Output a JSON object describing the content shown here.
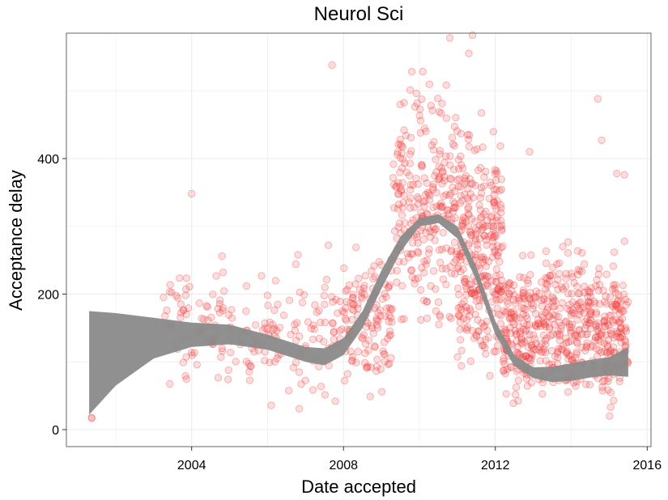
{
  "chart_data": {
    "type": "scatter",
    "title": "Neurol Sci",
    "xlabel": "Date accepted",
    "ylabel": "Acceptance delay",
    "x_ticks": [
      2004,
      2008,
      2012,
      2016
    ],
    "y_ticks": [
      0,
      200,
      400
    ],
    "xlim": [
      2000.7,
      2016.1
    ],
    "ylim": [
      -25,
      585
    ],
    "grid": true,
    "colors": {
      "points": "#f03c3c",
      "band": "#8a8a8a",
      "grid": "#ebebeb",
      "frame": "#7f7f7f"
    },
    "point_clusters": [
      {
        "x": [
          2001.3,
          2001.4
        ],
        "y": [
          10,
          22
        ],
        "n": 2
      },
      {
        "x": [
          2003.2,
          2005.5
        ],
        "y": [
          40,
          260
        ],
        "n": 90
      },
      {
        "x": [
          2005.5,
          2008.0
        ],
        "y": [
          10,
          270
        ],
        "n": 110
      },
      {
        "x": [
          2008.0,
          2009.3
        ],
        "y": [
          30,
          300
        ],
        "n": 130
      },
      {
        "x": [
          2009.3,
          2011.0
        ],
        "y": [
          100,
          560
        ],
        "n": 260
      },
      {
        "x": [
          2011.0,
          2012.2
        ],
        "y": [
          0,
          500
        ],
        "n": 300
      },
      {
        "x": [
          2012.2,
          2015.5
        ],
        "y": [
          0,
          300
        ],
        "n": 560
      }
    ],
    "extra_points": [
      {
        "x": 2004.0,
        "y": 348
      },
      {
        "x": 2007.7,
        "y": 538
      },
      {
        "x": 2009.8,
        "y": 528
      },
      {
        "x": 2010.8,
        "y": 578
      },
      {
        "x": 2011.4,
        "y": 582
      },
      {
        "x": 2011.3,
        "y": 555
      },
      {
        "x": 2012.9,
        "y": 410
      },
      {
        "x": 2014.7,
        "y": 488
      },
      {
        "x": 2014.8,
        "y": 427
      },
      {
        "x": 2015.2,
        "y": 378
      },
      {
        "x": 2015.4,
        "y": 376
      },
      {
        "x": 2015.4,
        "y": 278
      },
      {
        "x": 2007.6,
        "y": 272
      },
      {
        "x": 2006.8,
        "y": 258
      },
      {
        "x": 2004.8,
        "y": 256
      }
    ],
    "smooth": {
      "x": [
        2001.3,
        2002,
        2003,
        2004,
        2005,
        2006,
        2007,
        2007.5,
        2008,
        2008.5,
        2009,
        2009.5,
        2010,
        2010.5,
        2011,
        2011.5,
        2012,
        2012.5,
        2013,
        2013.5,
        2014,
        2014.5,
        2015,
        2015.5
      ],
      "upper": [
        175,
        172,
        165,
        158,
        155,
        140,
        122,
        120,
        135,
        175,
        235,
        285,
        312,
        318,
        300,
        240,
        160,
        110,
        92,
        93,
        98,
        103,
        107,
        122
      ],
      "lower": [
        22,
        65,
        105,
        122,
        126,
        118,
        100,
        95,
        110,
        150,
        208,
        262,
        300,
        305,
        282,
        220,
        140,
        94,
        76,
        70,
        72,
        77,
        80,
        78
      ]
    }
  }
}
